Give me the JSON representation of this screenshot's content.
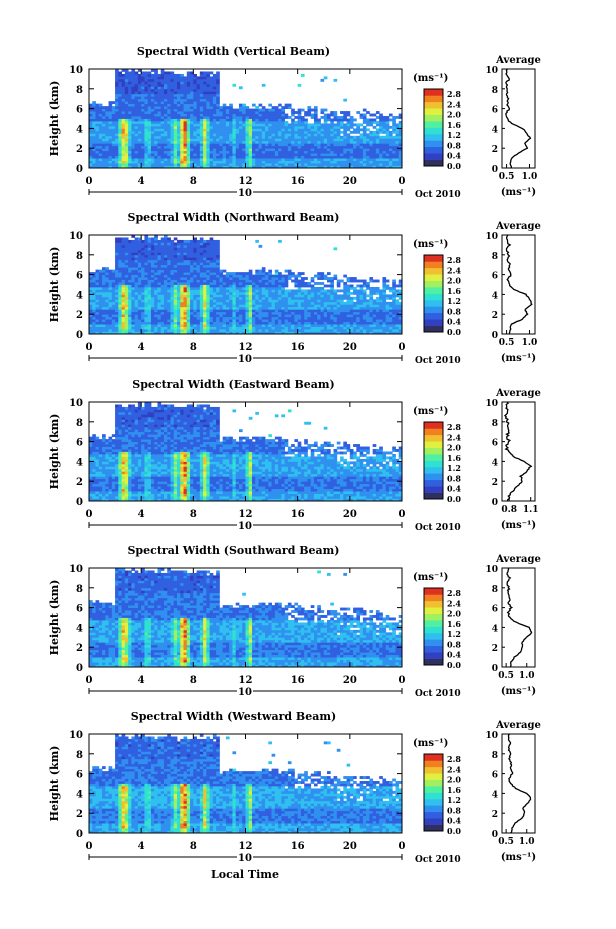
{
  "chart_data": {
    "type": "heatmap",
    "date_label": "Oct 2010",
    "date_day": "10",
    "xlabel_bottom": "Local Time",
    "x_ticks": [
      "0",
      "4",
      "8",
      "12",
      "16",
      "20",
      "0"
    ],
    "x_range_hours": [
      0,
      24
    ],
    "y_ticks": [
      "0",
      "2",
      "4",
      "6",
      "8",
      "10"
    ],
    "ylabel": "Height (km)",
    "y_range_km": [
      0,
      10
    ],
    "colorbar": {
      "unit": "(ms⁻¹)",
      "labels": [
        "0.0",
        "0.4",
        "0.8",
        "1.2",
        "1.6",
        "2.0",
        "2.4",
        "2.8"
      ],
      "range": [
        0.0,
        3.0
      ],
      "colors": [
        "#303060",
        "#3040c0",
        "#3060e0",
        "#3090f0",
        "#30c0f0",
        "#30e0d0",
        "#50f0a0",
        "#a0f060",
        "#e0f040",
        "#f0c030",
        "#f08020",
        "#e03020"
      ]
    },
    "profile": {
      "title": "Average",
      "xlabel": "(ms⁻¹)"
    },
    "panels": [
      {
        "title": "Spectral Width (Vertical Beam)",
        "profile_x_ticks": [
          0.5,
          1.0
        ],
        "profile_x_labels": [
          "0.5",
          "1.0"
        ],
        "profile_x_range": [
          0.4,
          1.12
        ],
        "profile": [
          [
            0.0,
            0.6
          ],
          [
            0.5,
            0.58
          ],
          [
            1.0,
            0.62
          ],
          [
            1.5,
            0.75
          ],
          [
            2.0,
            0.95
          ],
          [
            2.5,
            0.9
          ],
          [
            3.0,
            1.02
          ],
          [
            3.5,
            0.93
          ],
          [
            4.0,
            0.85
          ],
          [
            4.5,
            0.6
          ],
          [
            5.0,
            0.52
          ],
          [
            5.5,
            0.5
          ],
          [
            6.0,
            0.55
          ],
          [
            6.5,
            0.52
          ],
          [
            7.0,
            0.54
          ],
          [
            7.5,
            0.5
          ],
          [
            8.0,
            0.52
          ],
          [
            8.5,
            0.49
          ],
          [
            9.0,
            0.55
          ],
          [
            9.5,
            0.5
          ],
          [
            10.0,
            0.52
          ]
        ]
      },
      {
        "title": "Spectral Width (Northward Beam)",
        "profile_x_ticks": [
          0.5,
          1.0
        ],
        "profile_x_labels": [
          "0.5",
          "1.0"
        ],
        "profile_x_range": [
          0.4,
          1.12
        ],
        "profile": [
          [
            0.0,
            0.55
          ],
          [
            0.5,
            0.58
          ],
          [
            1.0,
            0.6
          ],
          [
            1.5,
            0.85
          ],
          [
            2.0,
            0.95
          ],
          [
            2.5,
            0.9
          ],
          [
            3.0,
            1.05
          ],
          [
            3.5,
            1.0
          ],
          [
            4.0,
            0.92
          ],
          [
            4.5,
            0.65
          ],
          [
            5.0,
            0.55
          ],
          [
            5.5,
            0.52
          ],
          [
            6.0,
            0.6
          ],
          [
            6.5,
            0.55
          ],
          [
            7.0,
            0.57
          ],
          [
            7.5,
            0.52
          ],
          [
            8.0,
            0.55
          ],
          [
            8.5,
            0.5
          ],
          [
            9.0,
            0.56
          ],
          [
            9.5,
            0.5
          ],
          [
            10.0,
            0.53
          ]
        ]
      },
      {
        "title": "Spectral Width (Eastward Beam)",
        "profile_x_ticks": [
          0.8,
          1.1
        ],
        "profile_x_labels": [
          "0.8",
          "1.1"
        ],
        "profile_x_range": [
          0.7,
          1.16
        ],
        "profile": [
          [
            0.0,
            0.78
          ],
          [
            0.5,
            0.8
          ],
          [
            1.0,
            0.85
          ],
          [
            1.5,
            0.92
          ],
          [
            2.0,
            0.98
          ],
          [
            2.5,
            0.96
          ],
          [
            3.0,
            1.05
          ],
          [
            3.5,
            1.1
          ],
          [
            4.0,
            1.02
          ],
          [
            4.5,
            0.85
          ],
          [
            5.0,
            0.78
          ],
          [
            5.5,
            0.76
          ],
          [
            6.0,
            0.8
          ],
          [
            6.5,
            0.77
          ],
          [
            7.0,
            0.79
          ],
          [
            7.5,
            0.76
          ],
          [
            8.0,
            0.78
          ],
          [
            8.5,
            0.75
          ],
          [
            9.0,
            0.78
          ],
          [
            9.5,
            0.75
          ],
          [
            10.0,
            0.77
          ]
        ]
      },
      {
        "title": "Spectral Width (Southward Beam)",
        "profile_x_ticks": [
          0.5,
          1.0
        ],
        "profile_x_labels": [
          "0.5",
          "1.0"
        ],
        "profile_x_range": [
          0.4,
          1.2
        ],
        "profile": [
          [
            0.0,
            0.6
          ],
          [
            0.5,
            0.62
          ],
          [
            1.0,
            0.7
          ],
          [
            1.5,
            0.85
          ],
          [
            2.0,
            0.9
          ],
          [
            2.5,
            0.88
          ],
          [
            3.0,
            1.0
          ],
          [
            3.5,
            1.12
          ],
          [
            4.0,
            1.05
          ],
          [
            4.5,
            0.75
          ],
          [
            5.0,
            0.58
          ],
          [
            5.5,
            0.55
          ],
          [
            6.0,
            0.62
          ],
          [
            6.5,
            0.56
          ],
          [
            7.0,
            0.59
          ],
          [
            7.5,
            0.54
          ],
          [
            8.0,
            0.57
          ],
          [
            8.5,
            0.52
          ],
          [
            9.0,
            0.58
          ],
          [
            9.5,
            0.52
          ],
          [
            10.0,
            0.55
          ]
        ]
      },
      {
        "title": "Spectral Width (Westward Beam)",
        "profile_x_ticks": [
          0.5,
          1.0
        ],
        "profile_x_labels": [
          "0.5",
          "1.0"
        ],
        "profile_x_range": [
          0.4,
          1.2
        ],
        "profile": [
          [
            0.0,
            0.62
          ],
          [
            0.5,
            0.65
          ],
          [
            1.0,
            0.72
          ],
          [
            1.5,
            0.88
          ],
          [
            2.0,
            0.95
          ],
          [
            2.5,
            0.9
          ],
          [
            3.0,
            1.02
          ],
          [
            3.5,
            1.1
          ],
          [
            4.0,
            1.0
          ],
          [
            4.5,
            0.72
          ],
          [
            5.0,
            0.6
          ],
          [
            5.5,
            0.58
          ],
          [
            6.0,
            0.65
          ],
          [
            6.5,
            0.6
          ],
          [
            7.0,
            0.62
          ],
          [
            7.5,
            0.58
          ],
          [
            8.0,
            0.6
          ],
          [
            8.5,
            0.56
          ],
          [
            9.0,
            0.6
          ],
          [
            9.5,
            0.56
          ],
          [
            10.0,
            0.58
          ]
        ]
      }
    ]
  }
}
